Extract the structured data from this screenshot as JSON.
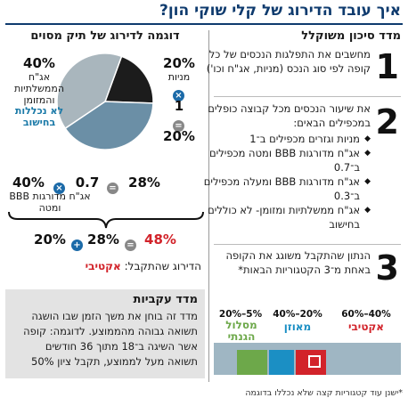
{
  "title": "איך עובד הדירוג של קלי שוקי הון?",
  "right_column": {
    "heading": "מדד סיכון משוקלל",
    "steps": [
      {
        "number": "1",
        "text": "מחשבים את התפלגות הנכסים של כל קופה לפי סוג הנכס (מניות, אג\"ח וכו')"
      },
      {
        "number": "2",
        "text": "את שיעור הנכסים מכל קבוצה כופלים במכפילים הבאים:",
        "bullets": [
          "מניות וגזרים מכפילים ב־1",
          "אג\"ח מדורגות BBB ומטה מכפילים ב־0.7",
          "אג\"ח מדורגות BBB ומעלה מכפילים ב־0.3",
          "אג\"ח ממשלתיות ומזומן- לא כוללים בחישוב"
        ]
      },
      {
        "number": "3",
        "text": "הנתון שהתקבל משוגג את הקופה באחת מ־3 הקטגוריות הבאות*"
      }
    ],
    "legend": [
      {
        "range": "60%–40%",
        "name": "אקטיבי",
        "color": "#d2232a"
      },
      {
        "range": "40%–20%",
        "name": "מאוזן",
        "color": "#1b8fc4"
      },
      {
        "range": "20%–5%",
        "name": "מסלול הגנתי",
        "color": "#6da84a"
      }
    ],
    "bar_colors": [
      "#9fb6c3",
      "#6da84a",
      "#1b8fc4",
      "#d2232a",
      "#9fb6c3"
    ]
  },
  "left_column": {
    "heading": "דוגמה לדירוג של תיק מסוים",
    "pie": {
      "slices": [
        {
          "name": "מניות",
          "value": 20,
          "color": "#1c1c1c"
        },
        {
          "name": "אג\"ח מדורגות BBB ומטה",
          "value": 40,
          "color": "#6b8fa6"
        },
        {
          "name": "אג\"ח הממשלתיות והמזומן",
          "value": 40,
          "color": "#a9b6bd"
        }
      ]
    },
    "label_gov_pct": "40%",
    "label_gov_name": "אג\"ח הממשלתיות והמזומן",
    "label_gov_note": "לא נכללות בחישוב",
    "label_stocks_pct": "20%",
    "label_stocks_name": "מניות",
    "mult_stocks": "1",
    "result_stocks": "20%",
    "label_bbb_pct": "40%",
    "label_bbb_name": "אג\"ח מדורגות BBB ומטה",
    "mult_bbb": "0.7",
    "result_bbb": "28%",
    "sum_a": "20%",
    "sum_b": "28%",
    "sum_total": "48%",
    "result_label": "הדירוג שהתקבל:",
    "result_value": "אקטיבי"
  },
  "box": {
    "title": "מדד עקביות",
    "text": "מדד זה בוחן את משך הזמן שבו הושגה תשואה גבוהה מהממוצע. לדוגמה: קופה אשר השיגה ב־18 מתוך 36 חודשים תשואה מעל לממוצע, תקבל ציון 50%"
  },
  "footnote": "*ישנן עוד קטגוריות קצה שלא נכללו בדוגמה",
  "colors": {
    "title_blue": "#0f3b6e",
    "accent_red": "#d2232a",
    "accent_blue": "#1b7aa8"
  }
}
